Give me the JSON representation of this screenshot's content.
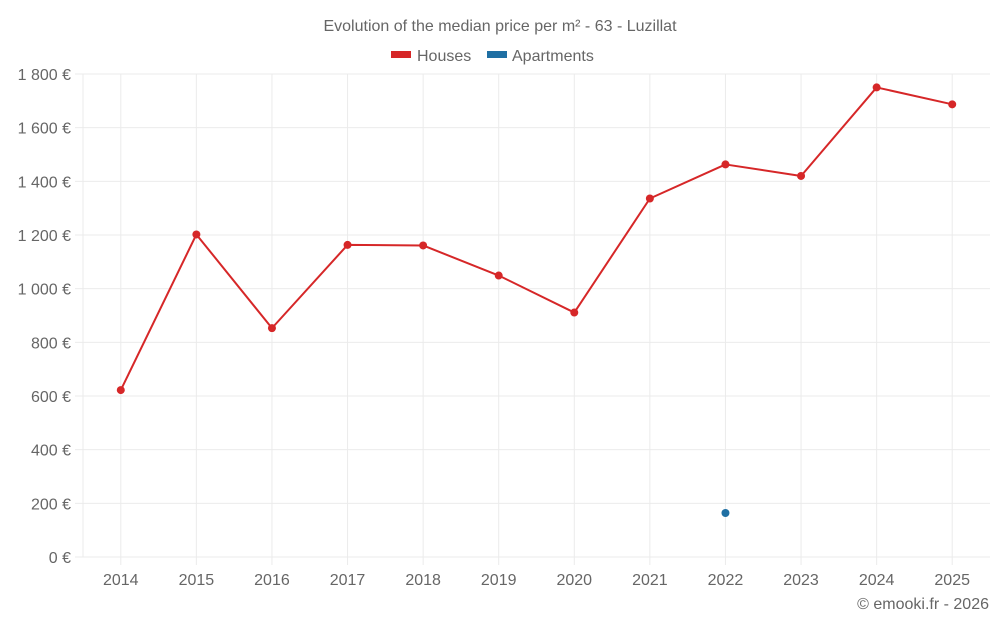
{
  "chart_data": {
    "type": "line",
    "title": "Evolution of the median price per m² - 63 - Luzillat",
    "xlabel": "",
    "ylabel": "",
    "categories": [
      "2014",
      "2015",
      "2016",
      "2017",
      "2018",
      "2019",
      "2020",
      "2021",
      "2022",
      "2023",
      "2024",
      "2025"
    ],
    "series": [
      {
        "name": "Houses",
        "color": "#d62728",
        "values": [
          622,
          1202,
          853,
          1163,
          1161,
          1049,
          911,
          1336,
          1463,
          1420,
          1750,
          1687
        ]
      },
      {
        "name": "Apartments",
        "color": "#1f6fa3",
        "values": [
          null,
          null,
          null,
          null,
          null,
          null,
          null,
          null,
          164,
          null,
          null,
          null
        ]
      }
    ],
    "ylim": [
      0,
      1800
    ],
    "yticks": [
      0,
      200,
      400,
      600,
      800,
      1000,
      1200,
      1400,
      1600,
      1800
    ],
    "ytick_labels": [
      "0 €",
      "200 €",
      "400 €",
      "600 €",
      "800 €",
      "1 000 €",
      "1 200 €",
      "1 400 €",
      "1 600 €",
      "1 800 €"
    ],
    "grid": true,
    "legend_position": "top-center"
  },
  "credit": "© emooki.fr - 2026"
}
